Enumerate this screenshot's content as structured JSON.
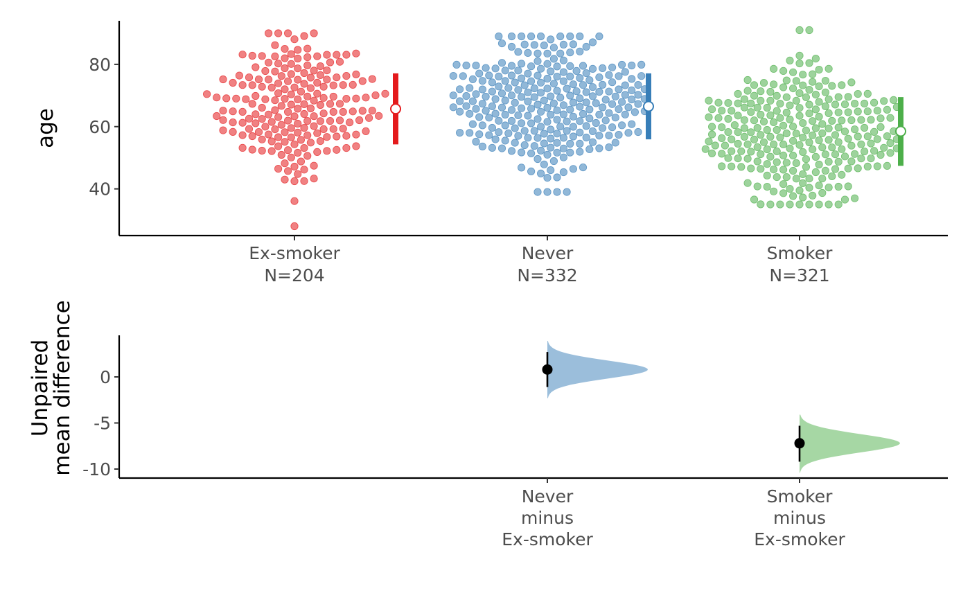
{
  "chart_data": [
    {
      "type": "scatter",
      "subtype": "beeswarm",
      "ylabel": "age",
      "ylim": [
        25,
        94
      ],
      "yticks": [
        40,
        60,
        80
      ],
      "groups": [
        {
          "name": "Ex-smoker",
          "count_label": "N=204",
          "n": 204,
          "color": "#e41a1c",
          "mean": 65.7,
          "sd_low": 54.3,
          "sd_high": 77.1,
          "min": 28,
          "max": 90,
          "center": 66,
          "spread": 1.0
        },
        {
          "name": "Never",
          "count_label": "N=332",
          "n": 332,
          "color": "#377eb8",
          "mean": 66.5,
          "sd_low": 55.9,
          "sd_high": 77.1,
          "min": 39,
          "max": 89,
          "center": 68,
          "spread": 1.0
        },
        {
          "name": "Smoker",
          "count_label": "N=321",
          "n": 321,
          "color": "#4daf4a",
          "mean": 58.5,
          "sd_low": 47.4,
          "sd_high": 69.5,
          "min": 35,
          "max": 91,
          "center": 57,
          "spread": 1.0
        }
      ]
    },
    {
      "type": "scatter",
      "subtype": "estimation",
      "ylabel_lines": [
        "Unpaired",
        "mean difference"
      ],
      "ylim": [
        -11,
        4
      ],
      "yticks": [
        0,
        -5,
        -10
      ],
      "tick_text": [
        "0",
        "-5",
        "-10"
      ],
      "comparisons": [
        {
          "label_lines": [
            "Never",
            "minus",
            "Ex-smoker"
          ],
          "color": "#377eb8",
          "position": 2,
          "diff": 0.8,
          "ci_low": -1.1,
          "ci_high": 2.7,
          "dist_low": -2.3,
          "dist_high": 3.9
        },
        {
          "label_lines": [
            "Smoker",
            "minus",
            "Ex-smoker"
          ],
          "color": "#4daf4a",
          "position": 3,
          "diff": -7.2,
          "ci_low": -9.2,
          "ci_high": -5.3,
          "dist_low": -10.4,
          "dist_high": -4.1
        }
      ]
    }
  ]
}
